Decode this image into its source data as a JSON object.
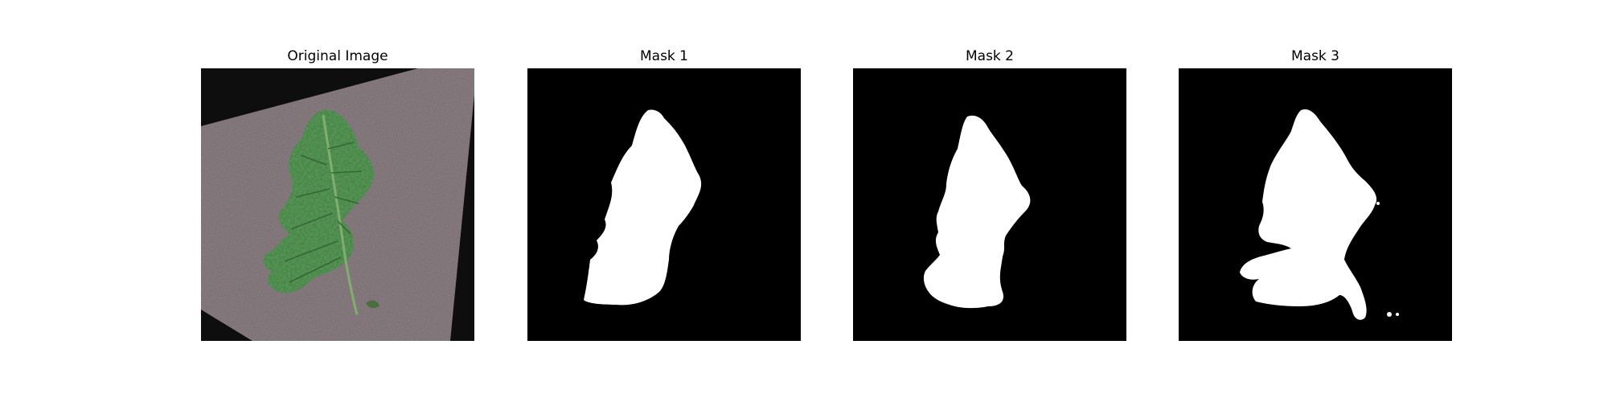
{
  "figure": {
    "panels": [
      {
        "title": "Original Image",
        "kind": "photo",
        "subject": "leaf-on-fabric"
      },
      {
        "title": "Mask 1",
        "kind": "binary-mask",
        "subject": "leaf-mask"
      },
      {
        "title": "Mask 2",
        "kind": "binary-mask",
        "subject": "leaf-mask"
      },
      {
        "title": "Mask 3",
        "kind": "binary-mask",
        "subject": "leaf-mask"
      }
    ]
  },
  "colors": {
    "background": "#ffffff",
    "mask_background": "#000000",
    "mask_foreground": "#ffffff",
    "fabric": "#6e6266",
    "leaf": "#3f7f3c"
  }
}
